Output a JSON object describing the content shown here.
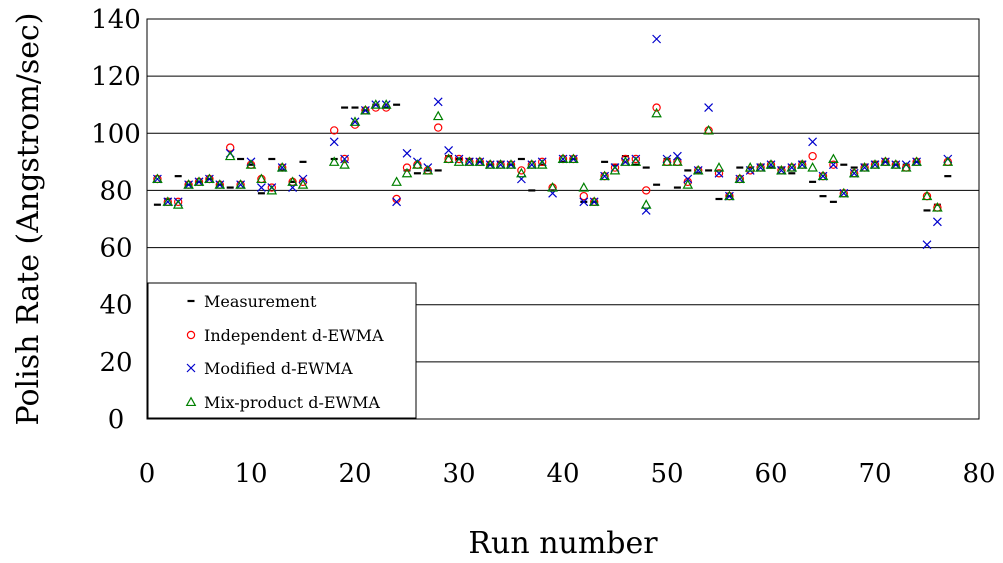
{
  "chart_data": {
    "type": "scatter",
    "title": "",
    "xlabel": "Run number",
    "ylabel": "Polish Rate (Angstrom/sec)",
    "xlim": [
      0,
      80
    ],
    "ylim": [
      0,
      140
    ],
    "xticks": [
      0,
      10,
      20,
      30,
      40,
      50,
      60,
      70,
      80
    ],
    "yticks": [
      0,
      20,
      40,
      60,
      80,
      100,
      120,
      140
    ],
    "grid": "horizontal",
    "legend_position": "lower-left",
    "series": [
      {
        "name": "Measurement",
        "marker": "dash",
        "color": "#000000",
        "points": [
          [
            1,
            75
          ],
          [
            2,
            77
          ],
          [
            3,
            85
          ],
          [
            4,
            82
          ],
          [
            5,
            83
          ],
          [
            6,
            84
          ],
          [
            7,
            82
          ],
          [
            8,
            81
          ],
          [
            9,
            91
          ],
          [
            10,
            89
          ],
          [
            11,
            79
          ],
          [
            12,
            91
          ],
          [
            13,
            87
          ],
          [
            14,
            83
          ],
          [
            15,
            90
          ],
          [
            18,
            91
          ],
          [
            19,
            109
          ],
          [
            20,
            109
          ],
          [
            21,
            108
          ],
          [
            22,
            110
          ],
          [
            23,
            109
          ],
          [
            24,
            110
          ],
          [
            25,
            87
          ],
          [
            26,
            86
          ],
          [
            27,
            87
          ],
          [
            28,
            87
          ],
          [
            29,
            92
          ],
          [
            30,
            91
          ],
          [
            31,
            91
          ],
          [
            32,
            90
          ],
          [
            33,
            89
          ],
          [
            34,
            90
          ],
          [
            35,
            89
          ],
          [
            36,
            91
          ],
          [
            37,
            80
          ],
          [
            38,
            89
          ],
          [
            39,
            80
          ],
          [
            40,
            90
          ],
          [
            41,
            91
          ],
          [
            42,
            76
          ],
          [
            43,
            76
          ],
          [
            44,
            90
          ],
          [
            45,
            89
          ],
          [
            46,
            92
          ],
          [
            47,
            89
          ],
          [
            48,
            88
          ],
          [
            49,
            82
          ],
          [
            50,
            91
          ],
          [
            51,
            81
          ],
          [
            52,
            87
          ],
          [
            53,
            86
          ],
          [
            54,
            87
          ],
          [
            55,
            77
          ],
          [
            56,
            78
          ],
          [
            57,
            88
          ],
          [
            58,
            88
          ],
          [
            59,
            89
          ],
          [
            60,
            88
          ],
          [
            61,
            88
          ],
          [
            62,
            86
          ],
          [
            63,
            90
          ],
          [
            64,
            83
          ],
          [
            65,
            78
          ],
          [
            66,
            76
          ],
          [
            67,
            89
          ],
          [
            68,
            88
          ],
          [
            69,
            89
          ],
          [
            70,
            90
          ],
          [
            71,
            90
          ],
          [
            72,
            89
          ],
          [
            73,
            89
          ],
          [
            74,
            90
          ],
          [
            75,
            73
          ],
          [
            76,
            75
          ],
          [
            77,
            85
          ]
        ]
      },
      {
        "name": "Independent d-EWMA",
        "marker": "circle",
        "color": "#ff0000",
        "points": [
          [
            1,
            84
          ],
          [
            2,
            76
          ],
          [
            3,
            76
          ],
          [
            4,
            82
          ],
          [
            5,
            83
          ],
          [
            6,
            84
          ],
          [
            7,
            82
          ],
          [
            8,
            95
          ],
          [
            9,
            82
          ],
          [
            10,
            89
          ],
          [
            11,
            84
          ],
          [
            12,
            81
          ],
          [
            13,
            88
          ],
          [
            14,
            83
          ],
          [
            15,
            83
          ],
          [
            18,
            101
          ],
          [
            19,
            91
          ],
          [
            20,
            103
          ],
          [
            21,
            108
          ],
          [
            22,
            109
          ],
          [
            23,
            109
          ],
          [
            24,
            77
          ],
          [
            25,
            88
          ],
          [
            26,
            89
          ],
          [
            27,
            87
          ],
          [
            28,
            102
          ],
          [
            29,
            91
          ],
          [
            30,
            91
          ],
          [
            31,
            90
          ],
          [
            32,
            90
          ],
          [
            33,
            89
          ],
          [
            34,
            89
          ],
          [
            35,
            89
          ],
          [
            36,
            87
          ],
          [
            37,
            89
          ],
          [
            38,
            90
          ],
          [
            39,
            81
          ],
          [
            40,
            91
          ],
          [
            41,
            91
          ],
          [
            42,
            78
          ],
          [
            43,
            76
          ],
          [
            44,
            85
          ],
          [
            45,
            88
          ],
          [
            46,
            91
          ],
          [
            47,
            91
          ],
          [
            48,
            80
          ],
          [
            49,
            109
          ],
          [
            50,
            90
          ],
          [
            51,
            90
          ],
          [
            52,
            83
          ],
          [
            53,
            87
          ],
          [
            54,
            101
          ],
          [
            55,
            86
          ],
          [
            56,
            78
          ],
          [
            57,
            84
          ],
          [
            58,
            87
          ],
          [
            59,
            88
          ],
          [
            60,
            89
          ],
          [
            61,
            87
          ],
          [
            62,
            88
          ],
          [
            63,
            89
          ],
          [
            64,
            92
          ],
          [
            65,
            85
          ],
          [
            66,
            89
          ],
          [
            67,
            79
          ],
          [
            68,
            86
          ],
          [
            69,
            88
          ],
          [
            70,
            89
          ],
          [
            71,
            90
          ],
          [
            72,
            89
          ],
          [
            73,
            88
          ],
          [
            74,
            90
          ],
          [
            75,
            78
          ],
          [
            76,
            74
          ],
          [
            77,
            90
          ]
        ]
      },
      {
        "name": "Modified d-EWMA",
        "marker": "x",
        "color": "#0000cc",
        "points": [
          [
            1,
            84
          ],
          [
            2,
            76
          ],
          [
            3,
            76
          ],
          [
            4,
            82
          ],
          [
            5,
            83
          ],
          [
            6,
            84
          ],
          [
            7,
            82
          ],
          [
            8,
            93
          ],
          [
            9,
            82
          ],
          [
            10,
            90
          ],
          [
            11,
            81
          ],
          [
            12,
            81
          ],
          [
            13,
            88
          ],
          [
            14,
            81
          ],
          [
            15,
            84
          ],
          [
            18,
            97
          ],
          [
            19,
            91
          ],
          [
            20,
            104
          ],
          [
            21,
            108
          ],
          [
            22,
            110
          ],
          [
            23,
            110
          ],
          [
            24,
            76
          ],
          [
            25,
            93
          ],
          [
            26,
            90
          ],
          [
            27,
            88
          ],
          [
            28,
            111
          ],
          [
            29,
            94
          ],
          [
            30,
            91
          ],
          [
            31,
            90
          ],
          [
            32,
            90
          ],
          [
            33,
            89
          ],
          [
            34,
            89
          ],
          [
            35,
            89
          ],
          [
            36,
            84
          ],
          [
            37,
            89
          ],
          [
            38,
            90
          ],
          [
            39,
            79
          ],
          [
            40,
            91
          ],
          [
            41,
            91
          ],
          [
            42,
            76
          ],
          [
            43,
            76
          ],
          [
            44,
            85
          ],
          [
            45,
            88
          ],
          [
            46,
            90
          ],
          [
            47,
            91
          ],
          [
            48,
            73
          ],
          [
            49,
            133
          ],
          [
            50,
            91
          ],
          [
            51,
            92
          ],
          [
            52,
            84
          ],
          [
            53,
            87
          ],
          [
            54,
            109
          ],
          [
            55,
            86
          ],
          [
            56,
            78
          ],
          [
            57,
            84
          ],
          [
            58,
            87
          ],
          [
            59,
            88
          ],
          [
            60,
            89
          ],
          [
            61,
            87
          ],
          [
            62,
            88
          ],
          [
            63,
            89
          ],
          [
            64,
            97
          ],
          [
            65,
            85
          ],
          [
            66,
            89
          ],
          [
            67,
            79
          ],
          [
            68,
            86
          ],
          [
            69,
            88
          ],
          [
            70,
            89
          ],
          [
            71,
            90
          ],
          [
            72,
            89
          ],
          [
            73,
            89
          ],
          [
            74,
            90
          ],
          [
            75,
            61
          ],
          [
            76,
            69
          ],
          [
            77,
            91
          ]
        ]
      },
      {
        "name": "Mix-product d-EWMA",
        "marker": "triangle",
        "color": "#008000",
        "points": [
          [
            1,
            84
          ],
          [
            2,
            76
          ],
          [
            3,
            75
          ],
          [
            4,
            82
          ],
          [
            5,
            83
          ],
          [
            6,
            84
          ],
          [
            7,
            82
          ],
          [
            8,
            92
          ],
          [
            9,
            82
          ],
          [
            10,
            89
          ],
          [
            11,
            84
          ],
          [
            12,
            80
          ],
          [
            13,
            88
          ],
          [
            14,
            83
          ],
          [
            15,
            82
          ],
          [
            18,
            90
          ],
          [
            19,
            89
          ],
          [
            20,
            104
          ],
          [
            21,
            108
          ],
          [
            22,
            110
          ],
          [
            23,
            110
          ],
          [
            24,
            83
          ],
          [
            25,
            86
          ],
          [
            26,
            89
          ],
          [
            27,
            87
          ],
          [
            28,
            106
          ],
          [
            29,
            91
          ],
          [
            30,
            90
          ],
          [
            31,
            90
          ],
          [
            32,
            90
          ],
          [
            33,
            89
          ],
          [
            34,
            89
          ],
          [
            35,
            89
          ],
          [
            36,
            86
          ],
          [
            37,
            89
          ],
          [
            38,
            89
          ],
          [
            39,
            81
          ],
          [
            40,
            91
          ],
          [
            41,
            91
          ],
          [
            42,
            81
          ],
          [
            43,
            76
          ],
          [
            44,
            85
          ],
          [
            45,
            87
          ],
          [
            46,
            90
          ],
          [
            47,
            90
          ],
          [
            48,
            75
          ],
          [
            49,
            107
          ],
          [
            50,
            90
          ],
          [
            51,
            90
          ],
          [
            52,
            82
          ],
          [
            53,
            87
          ],
          [
            54,
            101
          ],
          [
            55,
            88
          ],
          [
            56,
            78
          ],
          [
            57,
            84
          ],
          [
            58,
            88
          ],
          [
            59,
            88
          ],
          [
            60,
            89
          ],
          [
            61,
            87
          ],
          [
            62,
            88
          ],
          [
            63,
            89
          ],
          [
            64,
            88
          ],
          [
            65,
            85
          ],
          [
            66,
            91
          ],
          [
            67,
            79
          ],
          [
            68,
            86
          ],
          [
            69,
            88
          ],
          [
            70,
            89
          ],
          [
            71,
            90
          ],
          [
            72,
            89
          ],
          [
            73,
            88
          ],
          [
            74,
            90
          ],
          [
            75,
            78
          ],
          [
            76,
            74
          ],
          [
            77,
            90
          ]
        ]
      }
    ]
  }
}
